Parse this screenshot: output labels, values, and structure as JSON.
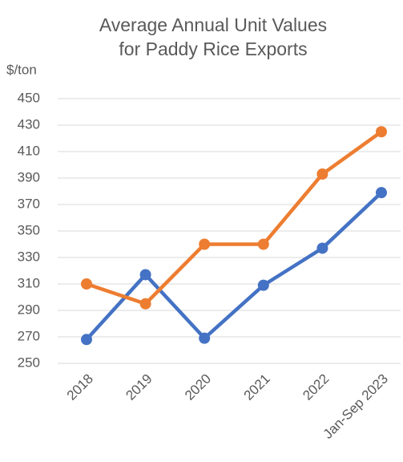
{
  "chart_data": {
    "type": "line",
    "title": [
      "Average Annual Unit Values",
      "for Paddy Rice Exports"
    ],
    "y_label": "$/ton",
    "categories": [
      "2018",
      "2019",
      "2020",
      "2021",
      "2022",
      "Jan-Sep 2023"
    ],
    "series": [
      {
        "color": "#4472c4",
        "values": [
          268,
          317,
          269,
          309,
          337,
          379
        ]
      },
      {
        "color": "#ed7d31",
        "values": [
          310,
          295,
          340,
          340,
          393,
          425
        ]
      }
    ],
    "ylim": [
      250,
      450
    ],
    "yticks": [
      250,
      270,
      290,
      310,
      330,
      350,
      370,
      390,
      410,
      430,
      450
    ],
    "grid": true
  }
}
